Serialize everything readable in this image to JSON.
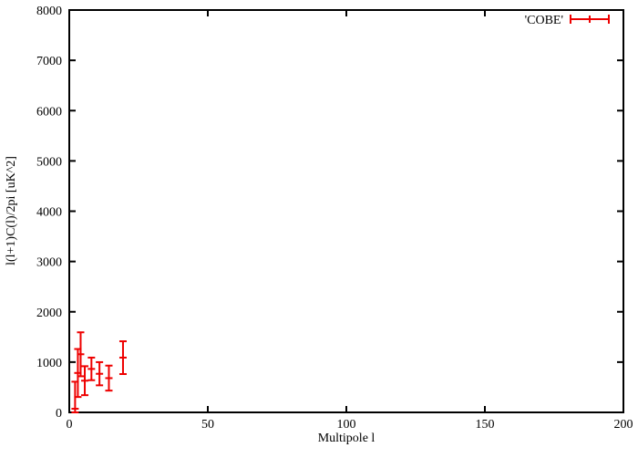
{
  "colors": {
    "background": "#ffffff",
    "frame": "#000000",
    "series_red": "#ee0000"
  },
  "chart_data": {
    "type": "scatter",
    "style": "points-with-errorbars",
    "title": "",
    "xlabel": "Multipole l",
    "ylabel": "l(l+1)C(l)/2pi [uK^2]",
    "xlim": [
      0,
      200
    ],
    "ylim": [
      0,
      8000
    ],
    "x_ticks": [
      0,
      50,
      100,
      150,
      200
    ],
    "y_ticks": [
      0,
      1000,
      2000,
      3000,
      4000,
      5000,
      6000,
      7000,
      8000
    ],
    "grid": false,
    "legend_position": "top-right-inside",
    "series": [
      {
        "name": "'COBE'",
        "color": "#ee0000",
        "points": [
          {
            "x": 2.1,
            "y": 72,
            "ylow": 0,
            "yhigh": 610
          },
          {
            "x": 3.1,
            "y": 784,
            "ylow": 306,
            "yhigh": 1260
          },
          {
            "x": 4.1,
            "y": 1156,
            "ylow": 718,
            "yhigh": 1592
          },
          {
            "x": 5.6,
            "y": 630,
            "ylow": 342,
            "yhigh": 918
          },
          {
            "x": 8.0,
            "y": 864,
            "ylow": 640,
            "yhigh": 1089
          },
          {
            "x": 10.9,
            "y": 767,
            "ylow": 538,
            "yhigh": 999
          },
          {
            "x": 14.3,
            "y": 681,
            "ylow": 433,
            "yhigh": 930
          },
          {
            "x": 19.4,
            "y": 1089,
            "ylow": 762,
            "yhigh": 1414
          }
        ]
      }
    ]
  }
}
